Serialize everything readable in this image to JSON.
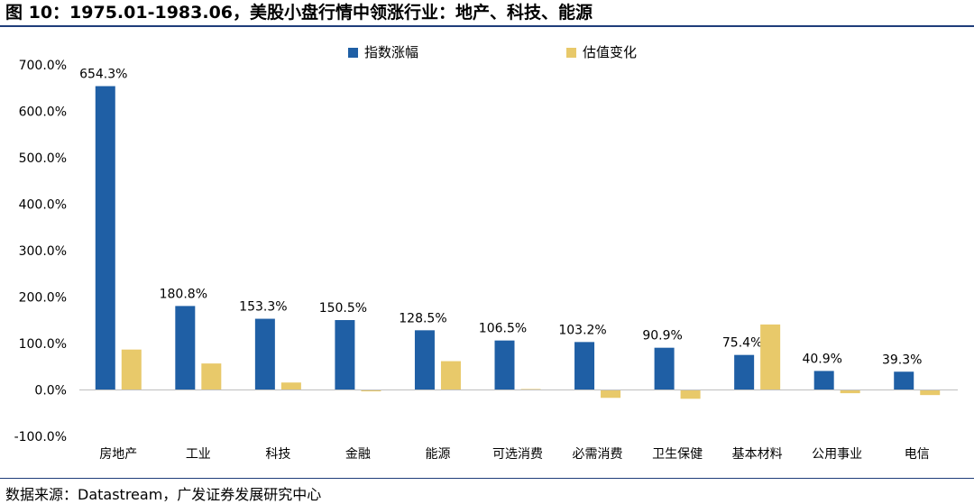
{
  "header": {
    "title": "图 10：1975.01-1983.06，美股小盘行情中领涨行业：地产、科技、能源"
  },
  "footer": {
    "source": "数据来源：Datastream，广发证券发展研究中心"
  },
  "chart_data": {
    "type": "bar",
    "title": "",
    "xlabel": "",
    "ylabel": "",
    "categories": [
      "房地产",
      "工业",
      "科技",
      "金融",
      "能源",
      "可选消费",
      "必需消费",
      "卫生保健",
      "基本材料",
      "公用事业",
      "电信"
    ],
    "series": [
      {
        "name": "指数涨幅",
        "color": "#1f5fa5",
        "values": [
          654.3,
          180.8,
          153.3,
          150.5,
          128.5,
          106.5,
          103.2,
          90.9,
          75.4,
          40.9,
          39.3
        ],
        "labels": [
          "654.3%",
          "180.8%",
          "153.3%",
          "150.5%",
          "128.5%",
          "106.5%",
          "103.2%",
          "90.9%",
          "75.4%",
          "40.9%",
          "39.3%"
        ]
      },
      {
        "name": "估值变化",
        "color": "#e8c96a",
        "values": [
          87,
          57,
          16,
          -3,
          62,
          2,
          -17,
          -19,
          141,
          -7,
          -11
        ]
      }
    ],
    "ylim": [
      -100,
      700
    ],
    "yticks": [
      -100,
      0,
      100,
      200,
      300,
      400,
      500,
      600,
      700
    ],
    "ytick_labels": [
      "-100.0%",
      "0.0%",
      "100.0%",
      "200.0%",
      "300.0%",
      "400.0%",
      "500.0%",
      "600.0%",
      "700.0%"
    ],
    "legend_position": "top-center",
    "grid": false
  }
}
